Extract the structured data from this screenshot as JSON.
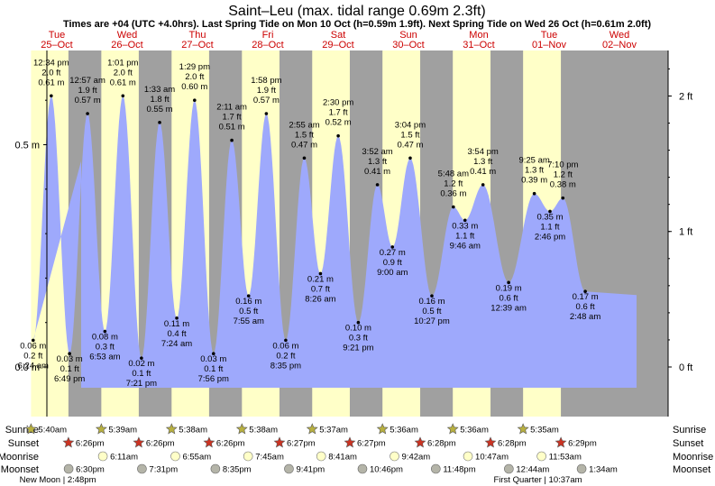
{
  "chart_data": {
    "type": "area",
    "title": "Saint–Leu (max. tidal range 0.69m 2.3ft)",
    "subtitle": "Times are +04 (UTC +4.0hrs). Last Spring Tide on Mon 10 Oct (h=0.59m 1.9ft). Next Spring Tide on Wed 26 Oct (h=0.61m 2.0ft)",
    "y_left_unit": "m",
    "y_right_unit": "ft",
    "ylim_m": [
      -0.09,
      0.69
    ],
    "y_left_ticks": [
      "0.0 m",
      "0.5 m"
    ],
    "y_right_ticks": [
      "0 ft",
      "1 ft",
      "2 ft"
    ],
    "days": [
      {
        "dow": "Tue",
        "date": "25–Oct"
      },
      {
        "dow": "Wed",
        "date": "26–Oct"
      },
      {
        "dow": "Thu",
        "date": "27–Oct"
      },
      {
        "dow": "Fri",
        "date": "28–Oct"
      },
      {
        "dow": "Sat",
        "date": "29–Oct"
      },
      {
        "dow": "Sun",
        "date": "30–Oct"
      },
      {
        "dow": "Mon",
        "date": "31–Oct"
      },
      {
        "dow": "Tue",
        "date": "01–Nov"
      },
      {
        "dow": "Wed",
        "date": "02–Nov"
      }
    ],
    "tides": [
      {
        "day": 0,
        "time": "6:24 am",
        "m": 0.06,
        "m_label": "0.06 m",
        "ft_label": "0.2 ft",
        "type": "low"
      },
      {
        "day": 0,
        "time": "12:34 pm",
        "m": 0.61,
        "m_label": "0.61 m",
        "ft_label": "2.0 ft",
        "type": "high"
      },
      {
        "day": 0,
        "time": "6:49 pm",
        "m": 0.03,
        "m_label": "0.03 m",
        "ft_label": "0.1 ft",
        "type": "low"
      },
      {
        "day": 1,
        "time": "12:57 am",
        "m": 0.57,
        "m_label": "0.57 m",
        "ft_label": "1.9 ft",
        "type": "high"
      },
      {
        "day": 1,
        "time": "6:53 am",
        "m": 0.08,
        "m_label": "0.08 m",
        "ft_label": "0.3 ft",
        "type": "low"
      },
      {
        "day": 1,
        "time": "1:01 pm",
        "m": 0.61,
        "m_label": "0.61 m",
        "ft_label": "2.0 ft",
        "type": "high"
      },
      {
        "day": 1,
        "time": "7:21 pm",
        "m": 0.02,
        "m_label": "0.02 m",
        "ft_label": "0.1 ft",
        "type": "low"
      },
      {
        "day": 2,
        "time": "1:33 am",
        "m": 0.55,
        "m_label": "0.55 m",
        "ft_label": "1.8 ft",
        "type": "high"
      },
      {
        "day": 2,
        "time": "7:24 am",
        "m": 0.11,
        "m_label": "0.11 m",
        "ft_label": "0.4 ft",
        "type": "low"
      },
      {
        "day": 2,
        "time": "1:29 pm",
        "m": 0.6,
        "m_label": "0.60 m",
        "ft_label": "2.0 ft",
        "type": "high"
      },
      {
        "day": 2,
        "time": "7:56 pm",
        "m": 0.03,
        "m_label": "0.03 m",
        "ft_label": "0.1 ft",
        "type": "low"
      },
      {
        "day": 3,
        "time": "2:11 am",
        "m": 0.51,
        "m_label": "0.51 m",
        "ft_label": "1.7 ft",
        "type": "high"
      },
      {
        "day": 3,
        "time": "7:55 am",
        "m": 0.16,
        "m_label": "0.16 m",
        "ft_label": "0.5 ft",
        "type": "low"
      },
      {
        "day": 3,
        "time": "1:58 pm",
        "m": 0.57,
        "m_label": "0.57 m",
        "ft_label": "1.9 ft",
        "type": "high"
      },
      {
        "day": 3,
        "time": "8:35 pm",
        "m": 0.06,
        "m_label": "0.06 m",
        "ft_label": "0.2 ft",
        "type": "low"
      },
      {
        "day": 4,
        "time": "2:55 am",
        "m": 0.47,
        "m_label": "0.47 m",
        "ft_label": "1.5 ft",
        "type": "high"
      },
      {
        "day": 4,
        "time": "8:26 am",
        "m": 0.21,
        "m_label": "0.21 m",
        "ft_label": "0.7 ft",
        "type": "low"
      },
      {
        "day": 4,
        "time": "2:30 pm",
        "m": 0.52,
        "m_label": "0.52 m",
        "ft_label": "1.7 ft",
        "type": "high"
      },
      {
        "day": 4,
        "time": "9:21 pm",
        "m": 0.1,
        "m_label": "0.10 m",
        "ft_label": "0.3 ft",
        "type": "low"
      },
      {
        "day": 5,
        "time": "3:52 am",
        "m": 0.41,
        "m_label": "0.41 m",
        "ft_label": "1.3 ft",
        "type": "high"
      },
      {
        "day": 5,
        "time": "9:00 am",
        "m": 0.27,
        "m_label": "0.27 m",
        "ft_label": "0.9 ft",
        "type": "low"
      },
      {
        "day": 5,
        "time": "3:04 pm",
        "m": 0.47,
        "m_label": "0.47 m",
        "ft_label": "1.5 ft",
        "type": "high"
      },
      {
        "day": 5,
        "time": "10:27 pm",
        "m": 0.16,
        "m_label": "0.16 m",
        "ft_label": "0.5 ft",
        "type": "low"
      },
      {
        "day": 6,
        "time": "5:48 am",
        "m": 0.36,
        "m_label": "0.36 m",
        "ft_label": "1.2 ft",
        "type": "high"
      },
      {
        "day": 6,
        "time": "9:46 am",
        "m": 0.33,
        "m_label": "0.33 m",
        "ft_label": "1.1 ft",
        "type": "low"
      },
      {
        "day": 6,
        "time": "3:54 pm",
        "m": 0.41,
        "m_label": "0.41 m",
        "ft_label": "1.3 ft",
        "type": "high"
      },
      {
        "day": 7,
        "time": "12:39 am",
        "m": 0.19,
        "m_label": "0.19 m",
        "ft_label": "0.6 ft",
        "type": "low"
      },
      {
        "day": 7,
        "time": "9:25 am",
        "m": 0.39,
        "m_label": "0.39 m",
        "ft_label": "1.3 ft",
        "type": "high"
      },
      {
        "day": 7,
        "time": "2:46 pm",
        "m": 0.35,
        "m_label": "0.35 m",
        "ft_label": "1.1 ft",
        "type": "low"
      },
      {
        "day": 7,
        "time": "7:10 pm",
        "m": 0.38,
        "m_label": "0.38 m",
        "ft_label": "1.2 ft",
        "type": "high"
      },
      {
        "day": 8,
        "time": "2:48 am",
        "m": 0.17,
        "m_label": "0.17 m",
        "ft_label": "0.6 ft",
        "type": "low"
      }
    ],
    "sunrise": [
      "5:40am",
      "5:39am",
      "5:38am",
      "5:38am",
      "5:37am",
      "5:36am",
      "5:36am",
      "5:35am"
    ],
    "sunset": [
      "6:26pm",
      "6:26pm",
      "6:26pm",
      "6:27pm",
      "6:27pm",
      "6:28pm",
      "6:28pm",
      "6:29pm"
    ],
    "moonrise": [
      {
        "day": 1,
        "time": "6:11am"
      },
      {
        "day": 2,
        "time": "6:55am"
      },
      {
        "day": 3,
        "time": "7:45am"
      },
      {
        "day": 4,
        "time": "8:41am"
      },
      {
        "day": 5,
        "time": "9:42am"
      },
      {
        "day": 6,
        "time": "10:47am"
      },
      {
        "day": 7,
        "time": "11:53am"
      }
    ],
    "moonset": [
      {
        "day": 0,
        "time": "6:30pm"
      },
      {
        "day": 1,
        "time": "7:31pm"
      },
      {
        "day": 2,
        "time": "8:35pm"
      },
      {
        "day": 3,
        "time": "9:41pm"
      },
      {
        "day": 4,
        "time": "10:46pm"
      },
      {
        "day": 5,
        "time": "11:48pm"
      },
      {
        "day": 7,
        "time": "12:44am"
      },
      {
        "day": 8,
        "time": "1:34am"
      }
    ],
    "row_labels": [
      "Sunrise",
      "Sunset",
      "Moonrise",
      "Moonset"
    ],
    "moon_phases": [
      {
        "day": 0,
        "label": "New Moon",
        "time": "2:48pm"
      },
      {
        "day": 7,
        "label": "First Quarter",
        "time": "10:37am"
      }
    ],
    "colors": {
      "night": "#a0a0a0",
      "day": "#ffffc8",
      "water": "#9ea9fc",
      "day_label": "#cc0000",
      "sun_star": "#b8b040",
      "sunset_star": "#cc3322",
      "moonrise": "#ffffc8",
      "moonset": "#b4b4a8"
    }
  }
}
